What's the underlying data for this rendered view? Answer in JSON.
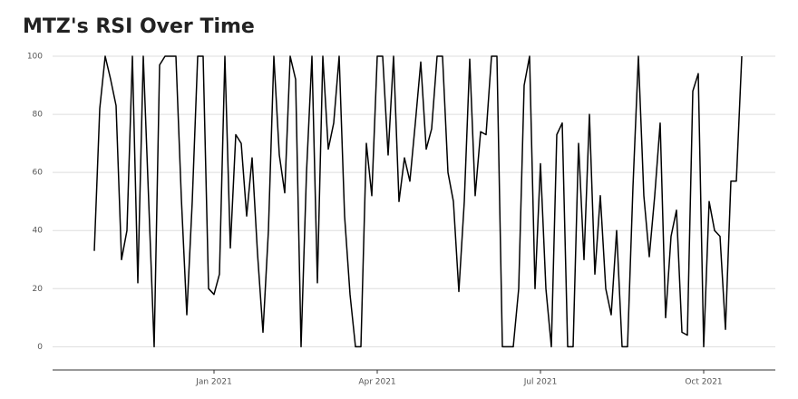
{
  "chart_data": {
    "type": "line",
    "title": "MTZ's RSI Over Time",
    "categories": [
      null,
      null,
      null,
      null,
      null,
      null,
      null,
      null,
      null,
      null,
      null,
      null,
      null,
      null,
      null,
      null,
      null,
      null,
      null,
      null,
      null,
      null,
      "Jan 2021",
      null,
      null,
      null,
      null,
      null,
      null,
      null,
      null,
      null,
      null,
      null,
      null,
      null,
      null,
      null,
      null,
      null,
      null,
      null,
      null,
      null,
      null,
      null,
      null,
      null,
      null,
      null,
      null,
      null,
      "Apr 2021",
      null,
      null,
      null,
      null,
      null,
      null,
      null,
      null,
      null,
      null,
      null,
      null,
      null,
      null,
      null,
      null,
      null,
      null,
      null,
      null,
      null,
      null,
      null,
      null,
      null,
      null,
      null,
      null,
      null,
      "Jul 2021",
      null,
      null,
      null,
      null,
      null,
      null,
      null,
      null,
      null,
      null,
      null,
      null,
      null,
      null,
      null,
      null,
      null,
      null,
      null,
      null,
      null,
      null,
      null,
      null,
      null,
      null,
      null,
      null,
      null,
      "Oct 2021",
      null,
      null,
      null,
      null,
      null,
      null,
      null
    ],
    "values": [
      33,
      82,
      100,
      92,
      83,
      30,
      40,
      100,
      22,
      100,
      50,
      0,
      97,
      100,
      100,
      100,
      51,
      11,
      50,
      100,
      100,
      20,
      18,
      25,
      100,
      34,
      73,
      70,
      45,
      65,
      32,
      5,
      40,
      100,
      66,
      53,
      100,
      92,
      0,
      60,
      100,
      22,
      100,
      68,
      77,
      100,
      45,
      18,
      0,
      0,
      70,
      52,
      100,
      100,
      66,
      100,
      50,
      65,
      57,
      77,
      98,
      68,
      75,
      100,
      100,
      60,
      50,
      19,
      50,
      99,
      52,
      74,
      73,
      100,
      100,
      0,
      0,
      0,
      20,
      90,
      100,
      20,
      63,
      20,
      0,
      73,
      77,
      0,
      0,
      70,
      30,
      80,
      25,
      52,
      20,
      11,
      40,
      0,
      0,
      55,
      100,
      52,
      31,
      52,
      77,
      10,
      38,
      47,
      5,
      4,
      88,
      94,
      0,
      50,
      40,
      38,
      6,
      57,
      57,
      100
    ],
    "color": "#000000",
    "ylim": [
      -8,
      105
    ],
    "yticks": [
      0,
      20,
      40,
      60,
      80,
      100
    ],
    "grid": true
  }
}
